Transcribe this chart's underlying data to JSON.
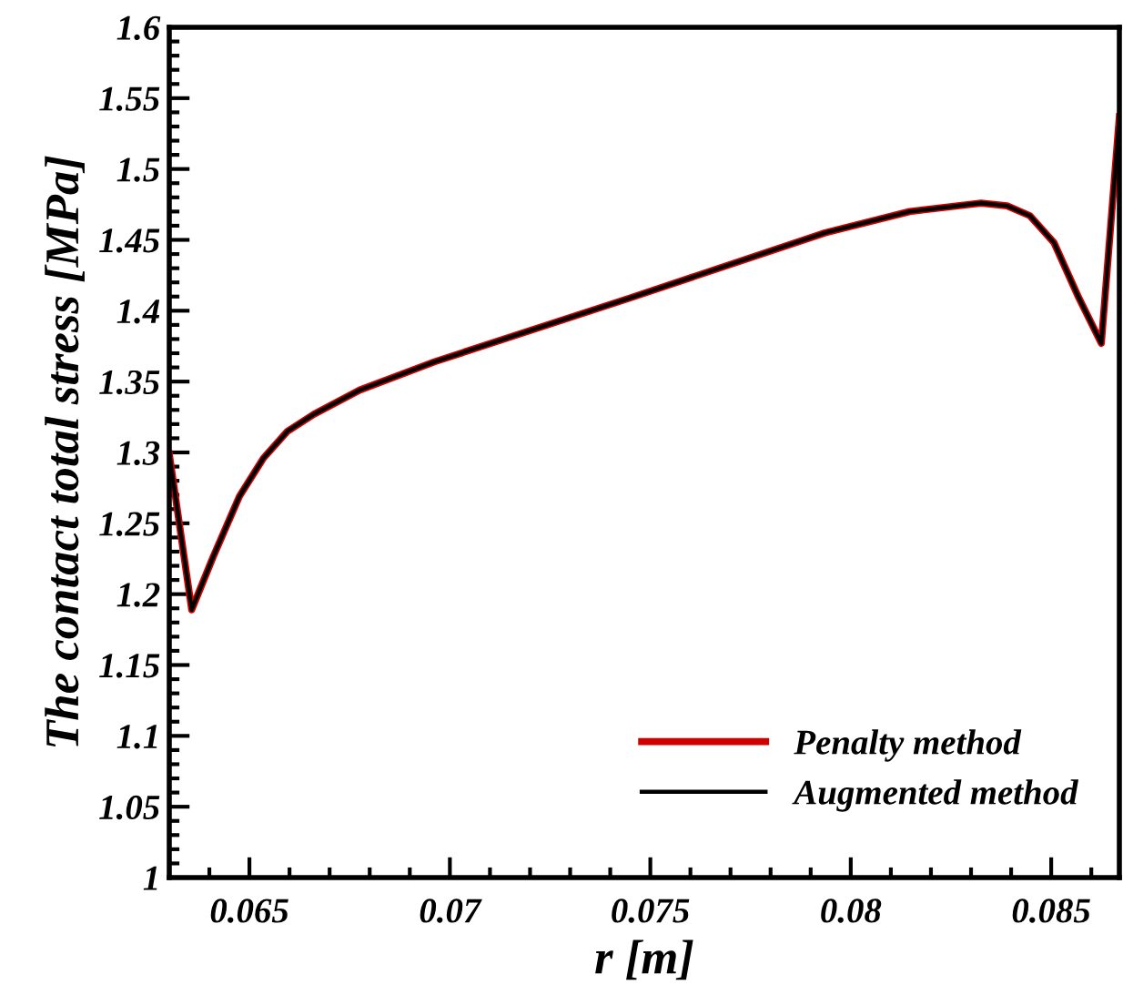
{
  "chart_data": {
    "type": "line",
    "xlabel": "r [m]",
    "ylabel": "The contact total stress [MPa]",
    "xlim": [
      0.063,
      0.0867
    ],
    "ylim": [
      1,
      1.6
    ],
    "xticks": [
      0.065,
      0.07,
      0.075,
      0.08,
      0.085
    ],
    "yticks": [
      1,
      1.05,
      1.1,
      1.15,
      1.2,
      1.25,
      1.3,
      1.35,
      1.4,
      1.45,
      1.5,
      1.55,
      1.6
    ],
    "grid": false,
    "legend": "bottom right",
    "marker": "none",
    "line_style": "solid",
    "x": [
      0.063,
      0.06356,
      0.06409,
      0.06475,
      0.06535,
      0.06595,
      0.06661,
      0.06775,
      0.06962,
      0.07449,
      0.07936,
      0.08147,
      0.08325,
      0.0839,
      0.08447,
      0.08507,
      0.08569,
      0.08625,
      0.0867
    ],
    "series": [
      {
        "name": "Penalty method",
        "color": "#d00000",
        "values": [
          1.299,
          1.189,
          1.226,
          1.269,
          1.296,
          1.315,
          1.327,
          1.344,
          1.364,
          1.409,
          1.455,
          1.47,
          1.476,
          1.474,
          1.467,
          1.448,
          1.409,
          1.377,
          1.537
        ]
      },
      {
        "name": "Augmented method",
        "color": "#000000",
        "values": [
          1.299,
          1.189,
          1.226,
          1.269,
          1.296,
          1.315,
          1.327,
          1.344,
          1.364,
          1.409,
          1.455,
          1.47,
          1.476,
          1.474,
          1.467,
          1.448,
          1.409,
          1.377,
          1.537
        ]
      }
    ]
  }
}
